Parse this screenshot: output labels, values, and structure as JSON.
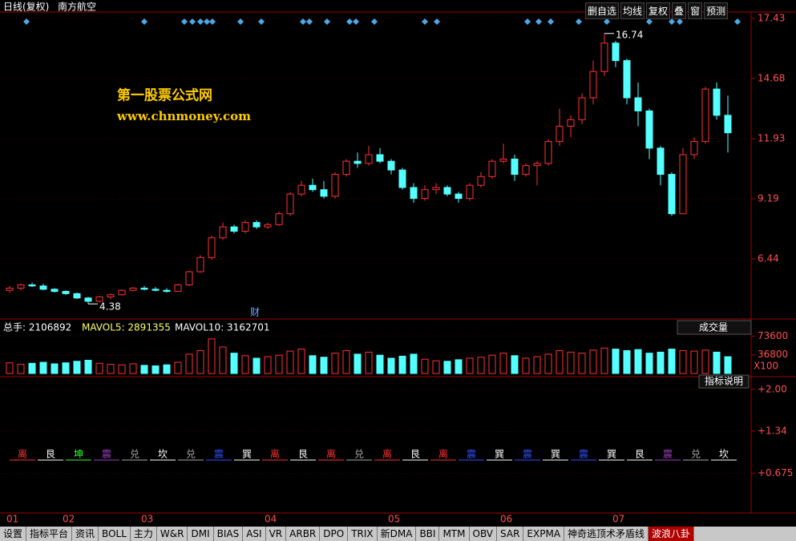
{
  "header": {
    "period": "日线(复权)",
    "stock": "南方航空",
    "buttons": [
      "删自选",
      "均线",
      "复权",
      "叠",
      "窗",
      "预测"
    ]
  },
  "watermark": {
    "title": "第一股票公式网",
    "url": "www.chnmoney.com"
  },
  "chart_data": [
    {
      "type": "candlestick",
      "name": "price",
      "ylim": [
        3.69,
        17.72
      ],
      "yticks": [
        6.44,
        9.19,
        11.93,
        14.68,
        17.43
      ],
      "up_color": "#ff3232",
      "down_color": "#54ffff",
      "annotations": [
        {
          "index": 53,
          "text": "16.74",
          "value": 16.74
        },
        {
          "index": 7,
          "text": "4.38",
          "value": 4.38
        }
      ],
      "marker_text": "财",
      "categories": [
        "01",
        null,
        null,
        null,
        null,
        "02",
        null,
        null,
        null,
        null,
        null,
        null,
        "03",
        null,
        null,
        null,
        null,
        null,
        null,
        null,
        null,
        null,
        null,
        "04",
        null,
        null,
        null,
        null,
        null,
        null,
        null,
        null,
        null,
        null,
        "05",
        null,
        null,
        null,
        null,
        null,
        null,
        null,
        null,
        null,
        "06",
        null,
        null,
        null,
        null,
        null,
        null,
        null,
        null,
        null,
        "07",
        null,
        null,
        null,
        null,
        null,
        null,
        null,
        null,
        null,
        null
      ],
      "candles": [
        [
          5.0,
          5.2,
          4.9,
          5.1
        ],
        [
          5.1,
          5.3,
          5.0,
          5.25
        ],
        [
          5.25,
          5.35,
          5.15,
          5.2
        ],
        [
          5.2,
          5.3,
          5.0,
          5.05
        ],
        [
          5.05,
          5.1,
          4.9,
          4.95
        ],
        [
          4.95,
          5.0,
          4.8,
          4.85
        ],
        [
          4.85,
          4.9,
          4.6,
          4.65
        ],
        [
          4.65,
          4.7,
          4.38,
          4.5
        ],
        [
          4.5,
          4.75,
          4.45,
          4.7
        ],
        [
          4.7,
          4.85,
          4.6,
          4.8
        ],
        [
          4.8,
          5.05,
          4.75,
          5.0
        ],
        [
          5.0,
          5.15,
          4.95,
          5.1
        ],
        [
          5.1,
          5.2,
          5.0,
          5.05
        ],
        [
          5.05,
          5.15,
          4.95,
          5.0
        ],
        [
          5.0,
          5.1,
          4.9,
          4.95
        ],
        [
          4.95,
          5.3,
          4.95,
          5.25
        ],
        [
          5.25,
          5.9,
          5.2,
          5.85
        ],
        [
          5.85,
          6.6,
          5.8,
          6.5
        ],
        [
          6.5,
          7.5,
          6.4,
          7.4
        ],
        [
          7.4,
          8.1,
          7.3,
          7.9
        ],
        [
          7.9,
          8.0,
          7.6,
          7.7
        ],
        [
          7.7,
          8.2,
          7.6,
          8.1
        ],
        [
          8.1,
          8.2,
          7.8,
          7.9
        ],
        [
          7.9,
          8.1,
          7.8,
          8.0
        ],
        [
          8.0,
          8.6,
          7.95,
          8.5
        ],
        [
          8.5,
          9.5,
          8.4,
          9.4
        ],
        [
          9.4,
          10.0,
          9.3,
          9.8
        ],
        [
          9.8,
          10.1,
          9.5,
          9.6
        ],
        [
          9.6,
          10.0,
          9.2,
          9.3
        ],
        [
          9.3,
          10.4,
          9.2,
          10.3
        ],
        [
          10.3,
          11.0,
          10.2,
          10.9
        ],
        [
          10.9,
          11.3,
          10.6,
          10.8
        ],
        [
          10.8,
          11.6,
          10.7,
          11.2
        ],
        [
          11.2,
          11.5,
          10.8,
          10.9
        ],
        [
          10.9,
          11.0,
          10.3,
          10.5
        ],
        [
          10.5,
          10.6,
          9.6,
          9.7
        ],
        [
          9.7,
          9.9,
          9.0,
          9.2
        ],
        [
          9.2,
          9.8,
          9.1,
          9.6
        ],
        [
          9.6,
          9.9,
          9.4,
          9.7
        ],
        [
          9.7,
          9.8,
          9.3,
          9.4
        ],
        [
          9.4,
          9.5,
          9.0,
          9.2
        ],
        [
          9.2,
          9.9,
          9.1,
          9.8
        ],
        [
          9.8,
          10.4,
          9.7,
          10.2
        ],
        [
          10.2,
          11.0,
          10.1,
          10.9
        ],
        [
          10.9,
          11.7,
          10.8,
          11.0
        ],
        [
          11.0,
          11.2,
          10.0,
          10.3
        ],
        [
          10.3,
          10.8,
          10.2,
          10.7
        ],
        [
          10.7,
          10.9,
          9.8,
          10.8
        ],
        [
          10.8,
          11.9,
          10.7,
          11.8
        ],
        [
          11.8,
          13.3,
          11.6,
          12.5
        ],
        [
          12.5,
          13.0,
          12.0,
          12.8
        ],
        [
          12.8,
          14.0,
          12.6,
          13.8
        ],
        [
          13.8,
          15.5,
          13.5,
          15.0
        ],
        [
          15.0,
          16.74,
          14.8,
          16.3
        ],
        [
          16.3,
          16.4,
          15.2,
          15.5
        ],
        [
          15.5,
          15.6,
          13.5,
          13.8
        ],
        [
          13.8,
          14.5,
          12.5,
          13.2
        ],
        [
          13.2,
          13.3,
          11.0,
          11.5
        ],
        [
          11.5,
          11.6,
          9.8,
          10.3
        ],
        [
          10.3,
          10.4,
          8.4,
          8.5
        ],
        [
          8.5,
          11.5,
          8.5,
          11.2
        ],
        [
          11.2,
          12.0,
          11.0,
          11.8
        ],
        [
          11.8,
          14.3,
          11.7,
          14.2
        ],
        [
          14.2,
          14.5,
          12.8,
          13.0
        ],
        [
          13.0,
          13.9,
          11.3,
          12.2
        ]
      ]
    },
    {
      "type": "bar",
      "name": "volume",
      "indicator": "成交量",
      "unit": "X100",
      "help": "指标说明",
      "stats": [
        "总手: 2106892",
        "MAVOL5: 2891355",
        "MAVOL10: 3162701"
      ],
      "ylim": [
        0,
        104000
      ],
      "yticks": [
        36800,
        73600
      ],
      "values": [
        21000,
        18000,
        20000,
        22000,
        19000,
        21000,
        24000,
        26000,
        20000,
        18000,
        17000,
        19000,
        16000,
        15000,
        17000,
        22000,
        38000,
        45000,
        68000,
        52000,
        40000,
        35000,
        30000,
        33000,
        36000,
        44000,
        48000,
        35000,
        32000,
        40000,
        45000,
        38000,
        42000,
        36000,
        30000,
        34000,
        38000,
        28000,
        25000,
        24000,
        27000,
        30000,
        32000,
        36000,
        40000,
        35000,
        30000,
        33000,
        38000,
        45000,
        42000,
        40000,
        46000,
        50000,
        48000,
        45000,
        47000,
        40000,
        42000,
        48000,
        45000,
        44000,
        46000,
        42000,
        33000
      ]
    },
    {
      "type": "symbols",
      "name": "bagua",
      "ylim": [
        0.05,
        2.2
      ],
      "yticks": [
        {
          "value": 2.0,
          "label": "+2.00"
        },
        {
          "value": 1.34,
          "label": "+1.34"
        },
        {
          "value": 0.675,
          "label": "+0.675"
        }
      ],
      "symbols": [
        {
          "text": "离",
          "color": "#ff3232"
        },
        {
          "text": "艮",
          "color": "#ffffff"
        },
        {
          "text": "坤",
          "color": "#33ff33"
        },
        {
          "text": "震",
          "color": "#a040c0"
        },
        {
          "text": "兑",
          "color": "#aaaaaa"
        },
        {
          "text": "坎",
          "color": "#ffffff"
        },
        {
          "text": "兑",
          "color": "#aaaaaa"
        },
        {
          "text": "震",
          "color": "#3050ff"
        },
        {
          "text": "巽",
          "color": "#ffffff"
        },
        {
          "text": "离",
          "color": "#ff3232"
        },
        {
          "text": "艮",
          "color": "#ffffff"
        },
        {
          "text": "离",
          "color": "#ff3232"
        },
        {
          "text": "兑",
          "color": "#aaaaaa"
        },
        {
          "text": "离",
          "color": "#ff3232"
        },
        {
          "text": "艮",
          "color": "#ffffff"
        },
        {
          "text": "离",
          "color": "#ff3232"
        },
        {
          "text": "震",
          "color": "#3050ff"
        },
        {
          "text": "巽",
          "color": "#ffffff"
        },
        {
          "text": "震",
          "color": "#3050ff"
        },
        {
          "text": "巽",
          "color": "#ffffff"
        },
        {
          "text": "震",
          "color": "#3050ff"
        },
        {
          "text": "巽",
          "color": "#ffffff"
        },
        {
          "text": "艮",
          "color": "#ffffff"
        },
        {
          "text": "震",
          "color": "#a040c0"
        },
        {
          "text": "兑",
          "color": "#aaaaaa"
        },
        {
          "text": "坎",
          "color": "#ffffff"
        }
      ]
    }
  ],
  "tabs": [
    "设置",
    "指标平台",
    "资讯",
    "BOLL",
    "主力",
    "W&R",
    "DMI",
    "BIAS",
    "ASI",
    "VR",
    "ARBR",
    "DPO",
    "TRIX",
    "新DMA",
    "BBI",
    "MTM",
    "OBV",
    "SAR",
    "EXPMA",
    "神奇逃顶术矛盾线",
    "波浪八卦"
  ]
}
